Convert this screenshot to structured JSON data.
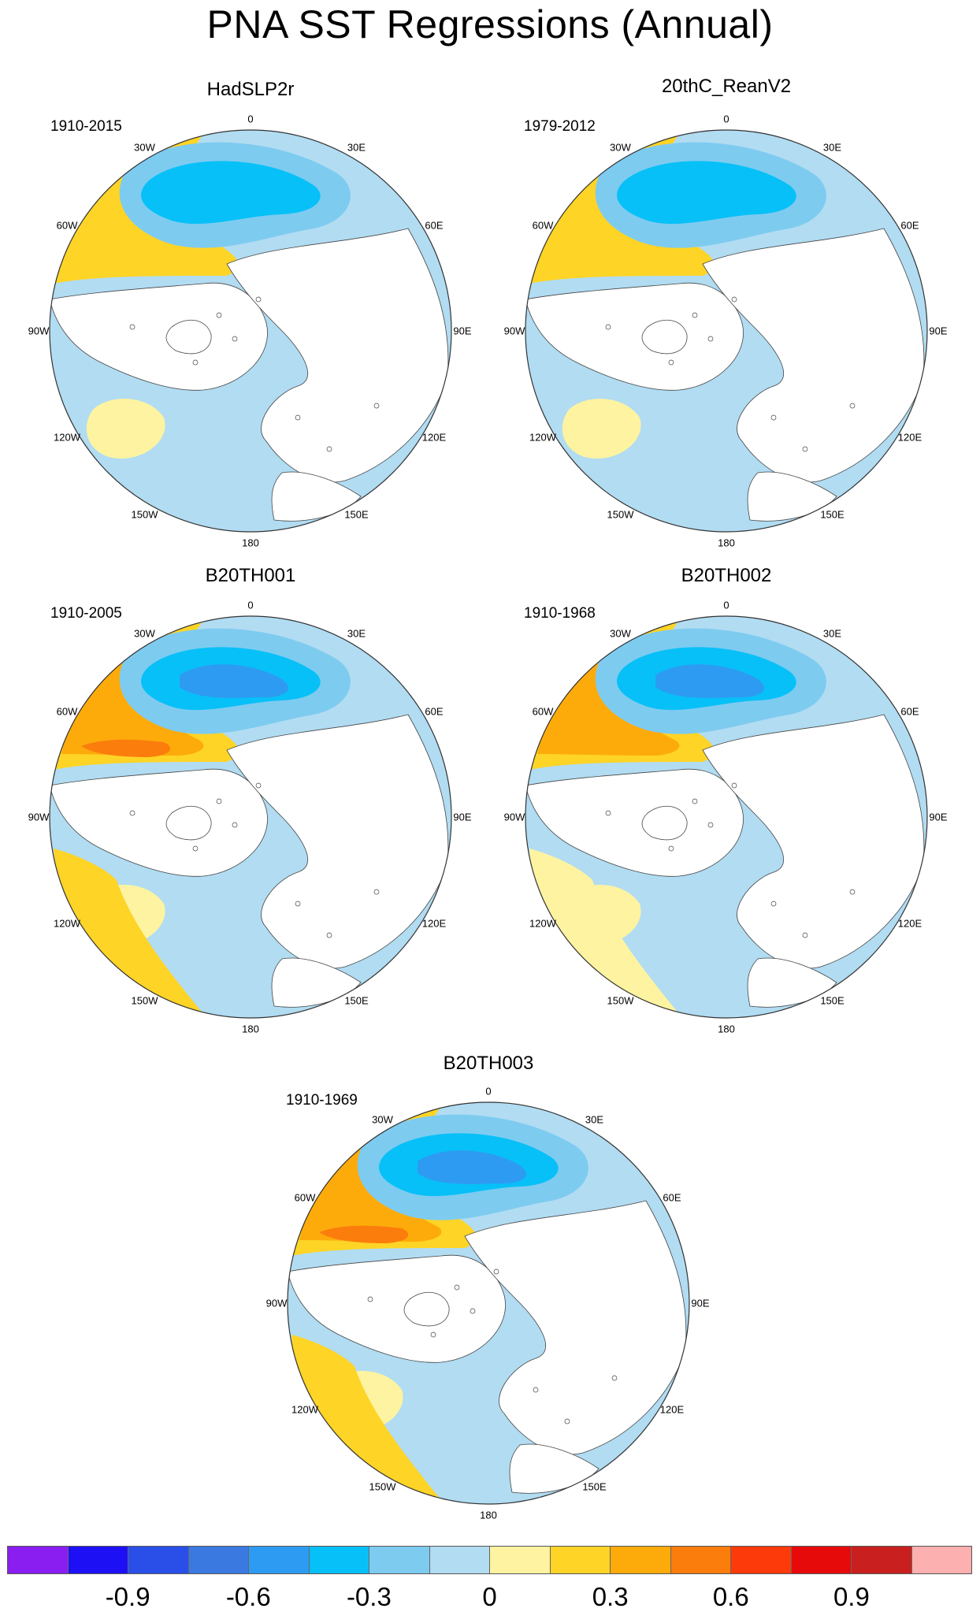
{
  "title": "PNA SST Regressions (Annual)",
  "panels": [
    {
      "title": "HadSLP2r",
      "period": "1910-2015",
      "variant": "obs1"
    },
    {
      "title": "20thC_ReanV2",
      "period": "1979-2012",
      "variant": "obs2"
    },
    {
      "title": "B20TH001",
      "period": "1910-2005",
      "variant": "model1"
    },
    {
      "title": "B20TH002",
      "period": "1910-1968",
      "variant": "model2"
    },
    {
      "title": "B20TH003",
      "period": "1910-1969",
      "variant": "model3"
    }
  ],
  "longitude_labels": [
    "180",
    "150E",
    "120E",
    "90E",
    "60E",
    "30E",
    "0",
    "30W",
    "60W",
    "90W",
    "120W",
    "150W"
  ],
  "colorbar": {
    "colors": [
      "#8a1ef0",
      "#1e10f5",
      "#2a4fe8",
      "#3a7ae0",
      "#2e9bf2",
      "#07c0f7",
      "#7ecbf0",
      "#b1dcf2",
      "#fdf3a0",
      "#fed426",
      "#fdab0b",
      "#fb7d0c",
      "#fc3a0a",
      "#e70a0a",
      "#c9201f",
      "#fdb0b0"
    ],
    "tick_labels": [
      "-0.9",
      "-0.6",
      "-0.3",
      "0",
      "0.3",
      "0.6",
      "0.9"
    ]
  }
}
